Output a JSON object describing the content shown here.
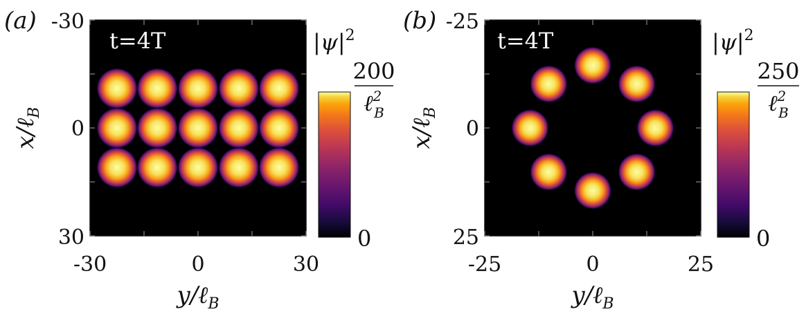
{
  "colors": {
    "background": "#000000",
    "colormap": "inferno",
    "text": "#111111",
    "time_label": "#ffffff"
  },
  "chart_data": [
    {
      "type": "heatmap",
      "panel_label": "(a)",
      "annotation": "t=4T",
      "xlabel": "y/ℓB",
      "ylabel": "x/ℓB",
      "xlim": [
        -30,
        30
      ],
      "ylim": [
        -30,
        30
      ],
      "y_axis_inverted": true,
      "xticks": [
        "-30",
        "0",
        "30"
      ],
      "yticks": [
        "-30",
        "0",
        "30"
      ],
      "colorbar": {
        "title": "|ψ|²",
        "max_label": "200",
        "max_unit": "ℓ²B",
        "min_label": "0",
        "max_value": 200,
        "min_value": 0
      },
      "blob_radius": 4.2,
      "blobs": [
        {
          "y": -22.5,
          "x": -11
        },
        {
          "y": -11.3,
          "x": -11
        },
        {
          "y": 0,
          "x": -11
        },
        {
          "y": 11.3,
          "x": -11
        },
        {
          "y": 22.5,
          "x": -11
        },
        {
          "y": -22.5,
          "x": 0
        },
        {
          "y": -11.3,
          "x": 0
        },
        {
          "y": 0,
          "x": 0
        },
        {
          "y": 11.3,
          "x": 0
        },
        {
          "y": 22.5,
          "x": 0
        },
        {
          "y": -22.5,
          "x": 11
        },
        {
          "y": -11.3,
          "x": 11
        },
        {
          "y": 0,
          "x": 11
        },
        {
          "y": 11.3,
          "x": 11
        },
        {
          "y": 22.5,
          "x": 11
        }
      ]
    },
    {
      "type": "heatmap",
      "panel_label": "(b)",
      "annotation": "t=4T",
      "xlabel": "y/ℓB",
      "ylabel": "x/ℓB",
      "xlim": [
        -25,
        25
      ],
      "ylim": [
        -25,
        25
      ],
      "y_axis_inverted": true,
      "xticks": [
        "-25",
        "0",
        "25"
      ],
      "yticks": [
        "-25",
        "0",
        "25"
      ],
      "colorbar": {
        "title": "|ψ|²",
        "max_label": "250",
        "max_unit": "ℓ²B",
        "min_label": "0",
        "max_value": 250,
        "min_value": 0
      },
      "blob_radius": 3.2,
      "blobs": [
        {
          "y": 0,
          "x": -14.5
        },
        {
          "y": 10.2,
          "x": -10.2
        },
        {
          "y": 14.5,
          "x": 0
        },
        {
          "y": 10.2,
          "x": 10.2
        },
        {
          "y": 0,
          "x": 14.5
        },
        {
          "y": -10.2,
          "x": 10.2
        },
        {
          "y": -14.5,
          "x": 0
        },
        {
          "y": -10.2,
          "x": -10.2
        }
      ]
    }
  ]
}
